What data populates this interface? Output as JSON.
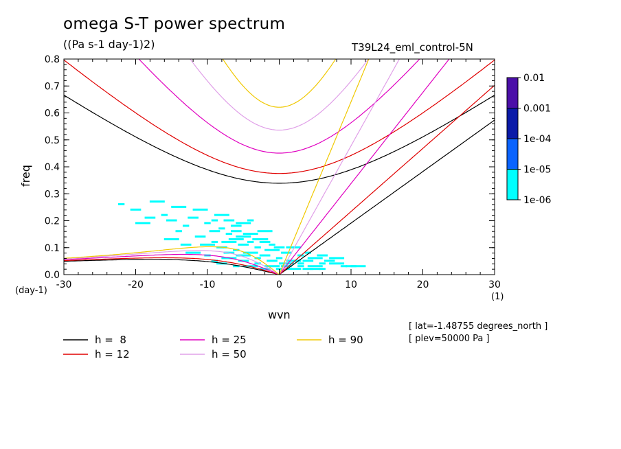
{
  "header": {
    "title": "omega S-T power spectrum",
    "units": "((Pa s-1 day-1)2)",
    "run": "T39L24_eml_control-5N"
  },
  "axes": {
    "xlabel": "wvn",
    "ylabel": "freq",
    "x_unit": "(day-1)",
    "x_unit2": "(1)"
  },
  "meta": {
    "lat": "[ lat=-1.48755 degrees_north ]",
    "plev": "[ plev=50000 Pa ]"
  },
  "chart_data": {
    "type": "heatmap",
    "title": "omega S-T power spectrum",
    "xlabel": "wvn",
    "ylabel": "freq",
    "xlim": [
      -30,
      30
    ],
    "ylim": [
      0,
      0.8
    ],
    "x_ticks": [
      -30,
      -20,
      -10,
      0,
      10,
      20,
      30
    ],
    "x_tick_labels": [
      "-30",
      "-20",
      "-10",
      "0",
      "10",
      "20",
      "30"
    ],
    "y_ticks": [
      0,
      0.1,
      0.2,
      0.3,
      0.4,
      0.5,
      0.6,
      0.7,
      0.8
    ],
    "y_tick_labels": [
      "0.0",
      "0.1",
      "0.2",
      "0.3",
      "0.4",
      "0.5",
      "0.6",
      "0.7",
      "0.8"
    ],
    "grid": false,
    "colorbar": {
      "labels": [
        "0.01",
        "0.001",
        "1e-04",
        "1e-05",
        "1e-06"
      ],
      "colors": [
        "#4b0fa8",
        "#0a1aa8",
        "#0a64ff",
        "#00ffff"
      ]
    },
    "shading": {
      "color": "#00ffff",
      "description_level": "1e-06 to 1e-05",
      "cells": [
        [
          -22,
          0.26
        ],
        [
          -20,
          0.24
        ],
        [
          -17,
          0.27
        ],
        [
          -16,
          0.22
        ],
        [
          -15,
          0.2
        ],
        [
          -14,
          0.25
        ],
        [
          -13,
          0.18
        ],
        [
          -12,
          0.21
        ],
        [
          -11,
          0.24
        ],
        [
          -10,
          0.19
        ],
        [
          -9,
          0.16
        ],
        [
          -8,
          0.22
        ],
        [
          -7,
          0.15
        ],
        [
          -6,
          0.18
        ],
        [
          -5,
          0.14
        ],
        [
          -4,
          0.2
        ],
        [
          -3,
          0.13
        ],
        [
          -2,
          0.16
        ],
        [
          -1,
          0.11
        ],
        [
          -11,
          0.14
        ],
        [
          -10,
          0.11
        ],
        [
          -9,
          0.12
        ],
        [
          -8,
          0.1
        ],
        [
          -7,
          0.12
        ],
        [
          -6,
          0.09
        ],
        [
          -5,
          0.11
        ],
        [
          -4,
          0.08
        ],
        [
          -3,
          0.1
        ],
        [
          -2,
          0.07
        ],
        [
          -1,
          0.09
        ],
        [
          0,
          0.06
        ],
        [
          1,
          0.08
        ],
        [
          2,
          0.05
        ],
        [
          3,
          0.07
        ],
        [
          4,
          0.05
        ],
        [
          5,
          0.06
        ],
        [
          6,
          0.04
        ],
        [
          7,
          0.05
        ],
        [
          8,
          0.04
        ],
        [
          9,
          0.03
        ],
        [
          10,
          0.03
        ],
        [
          11,
          0.03
        ],
        [
          -9,
          0.05
        ],
        [
          -8,
          0.04
        ],
        [
          -7,
          0.06
        ],
        [
          -6,
          0.03
        ],
        [
          -5,
          0.05
        ],
        [
          -4,
          0.03
        ],
        [
          -3,
          0.04
        ],
        [
          -2,
          0.02
        ],
        [
          -1,
          0.03
        ],
        [
          0,
          0.02
        ],
        [
          1,
          0.03
        ],
        [
          2,
          0.02
        ],
        [
          3,
          0.03
        ],
        [
          4,
          0.02
        ],
        [
          5,
          0.03
        ],
        [
          6,
          0.02
        ],
        [
          -7,
          0.08
        ],
        [
          -5,
          0.07
        ],
        [
          -3,
          0.06
        ],
        [
          -1,
          0.05
        ],
        [
          1,
          0.04
        ],
        [
          3,
          0.04
        ],
        [
          5,
          0.02
        ],
        [
          -6,
          0.13
        ],
        [
          -4,
          0.12
        ],
        [
          -2,
          0.12
        ],
        [
          -12,
          0.08
        ],
        [
          -10,
          0.07
        ],
        [
          -13,
          0.11
        ],
        [
          -15,
          0.13
        ],
        [
          -8,
          0.17
        ],
        [
          -6,
          0.16
        ],
        [
          -4,
          0.15
        ],
        [
          -2,
          0.13
        ],
        [
          0,
          0.1
        ],
        [
          2,
          0.1
        ],
        [
          4,
          0.08
        ],
        [
          6,
          0.07
        ],
        [
          8,
          0.06
        ],
        [
          -14,
          0.16
        ],
        [
          -18,
          0.21
        ],
        [
          -19,
          0.19
        ],
        [
          -9,
          0.2
        ],
        [
          -7,
          0.2
        ],
        [
          -5,
          0.19
        ]
      ]
    },
    "series": [
      {
        "name": "h =  8",
        "equivalent_depth": 8,
        "color": "#000000"
      },
      {
        "name": "h = 12",
        "equivalent_depth": 12,
        "color": "#e00000"
      },
      {
        "name": "h = 25",
        "equivalent_depth": 25,
        "color": "#e000c0"
      },
      {
        "name": "h = 50",
        "equivalent_depth": 50,
        "color": "#e0a0e8"
      },
      {
        "name": "h = 90",
        "equivalent_depth": 90,
        "color": "#f0c800"
      }
    ]
  }
}
